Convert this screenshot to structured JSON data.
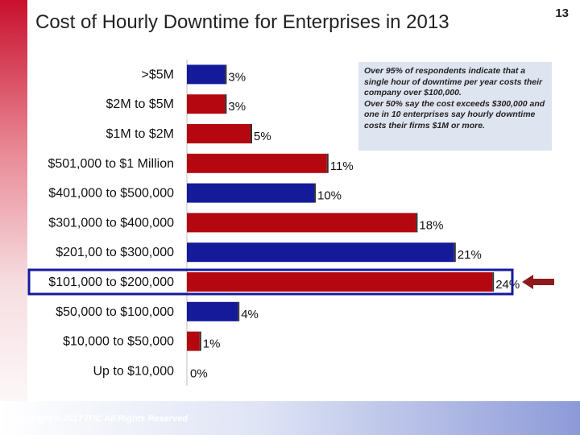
{
  "slide": {
    "title": "Cost of Hourly Downtime for Enterprises in 2013",
    "page_number": "13",
    "copyright": "Copyright © 2017 ITIC All Rights Reserved",
    "note_lines": [
      "Over 95% of respondents indicate that a single hour of downtime per year costs their company over $100,000.",
      "Over 50% say the cost exceeds $300,000 and one in 10 enterprises say hourly downtime costs their firms $1M or more."
    ],
    "highlighted_category": "$101,000 to $200,000"
  },
  "colors": {
    "navy": "#141a9a",
    "red": "#b5070f",
    "arrow": "#8e1a1e",
    "highlight_border": "#141a9a"
  },
  "chart_data": {
    "type": "bar",
    "orientation": "horizontal",
    "title": "Cost of Hourly Downtime for Enterprises in 2013",
    "categories": [
      ">$5M",
      "$2M to $5M",
      "$1M to $2M",
      "$501,000 to $1 Million",
      "$401,000 to $500,000",
      "$301,000 to $400,000",
      "$201,00 to $300,000",
      "$101,000 to $200,000",
      "$50,000 to $100,000",
      "$10,000 to $50,000",
      "Up to $10,000"
    ],
    "values": [
      3,
      3,
      5,
      11,
      10,
      18,
      21,
      24,
      4,
      1,
      0
    ],
    "labels": [
      "3%",
      "3%",
      "5%",
      "11%",
      "10%",
      "18%",
      "21%",
      "24%",
      "4%",
      "1%",
      "0%"
    ],
    "bar_colors": [
      "#141a9a",
      "#b5070f",
      "#b5070f",
      "#b5070f",
      "#141a9a",
      "#b5070f",
      "#141a9a",
      "#b5070f",
      "#141a9a",
      "#b5070f",
      "#141a9a"
    ],
    "unit": "%",
    "xlim": [
      0,
      24
    ]
  }
}
